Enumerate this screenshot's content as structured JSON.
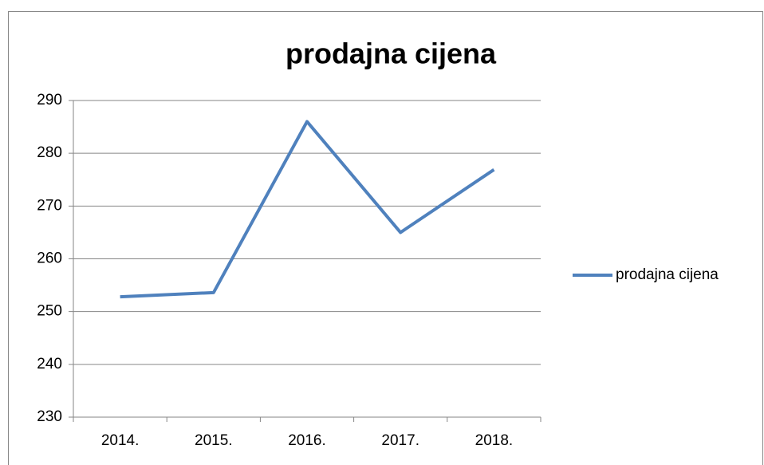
{
  "chart_data": {
    "type": "line",
    "title": "prodajna cijena",
    "categories": [
      "2014.",
      "2015.",
      "2016.",
      "2017.",
      "2018."
    ],
    "series": [
      {
        "name": "prodajna cijena",
        "color": "#4f81bd",
        "values": [
          252.8,
          253.6,
          286,
          265,
          276.9
        ]
      }
    ],
    "ylim": [
      230,
      290
    ],
    "yticks": [
      230,
      240,
      250,
      260,
      270,
      280,
      290
    ],
    "grid": true,
    "legend": "right"
  }
}
